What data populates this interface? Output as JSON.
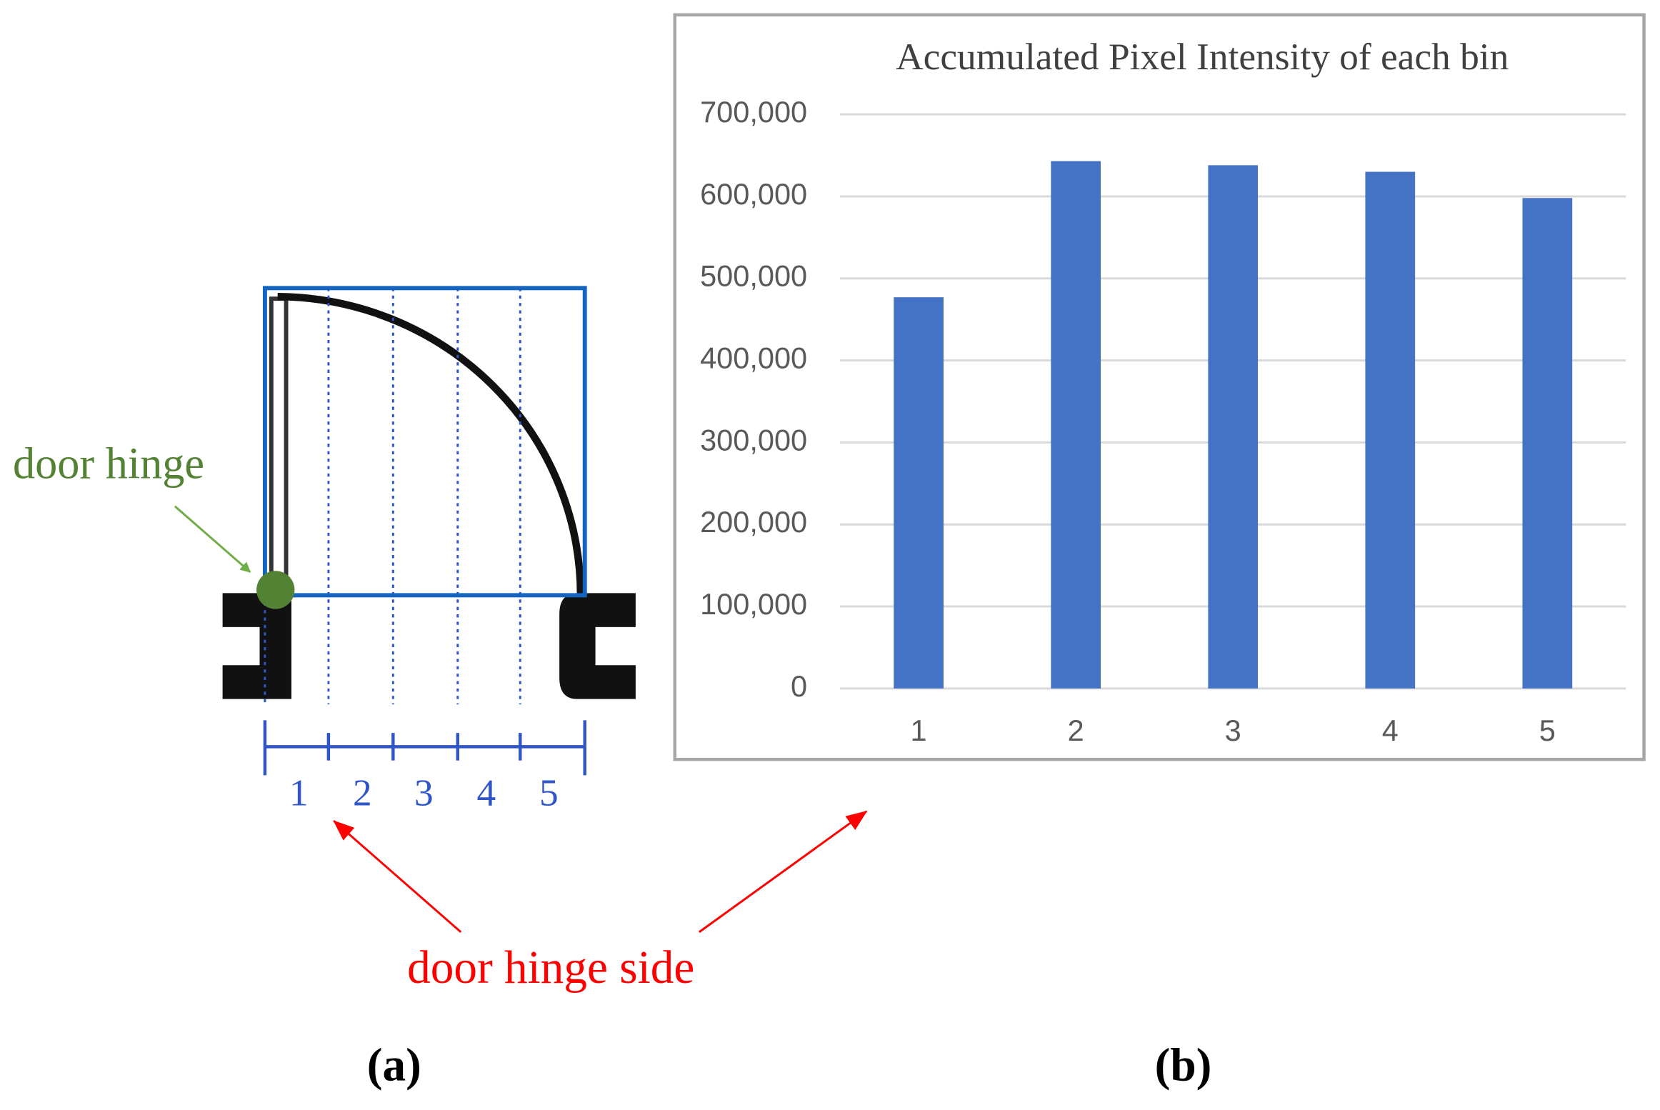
{
  "chart_data": {
    "type": "bar",
    "title": "Accumulated Pixel Intensity of each bin",
    "categories": [
      "1",
      "2",
      "3",
      "4",
      "5"
    ],
    "values": [
      477000,
      643000,
      638000,
      630000,
      598000
    ],
    "color": "#4472c4",
    "ylim": [
      0,
      700000
    ],
    "yticks": [
      0,
      {
        "value": 100000,
        "label": "100,000"
      },
      {
        "value": 200000,
        "label": "200,000"
      },
      {
        "value": 300000,
        "label": "300,000"
      },
      {
        "value": 400000,
        "label": "400,000"
      },
      {
        "value": 500000,
        "label": "500,000"
      },
      {
        "value": 600000,
        "label": "600,000"
      },
      {
        "value": 700000,
        "label": "700,000"
      }
    ],
    "grid": true
  },
  "diagram": {
    "hinge_label": "door hinge",
    "side_label": "door hinge side",
    "bins": [
      "1",
      "2",
      "3",
      "4",
      "5"
    ]
  },
  "panels": [
    "(a)",
    "(b)"
  ]
}
